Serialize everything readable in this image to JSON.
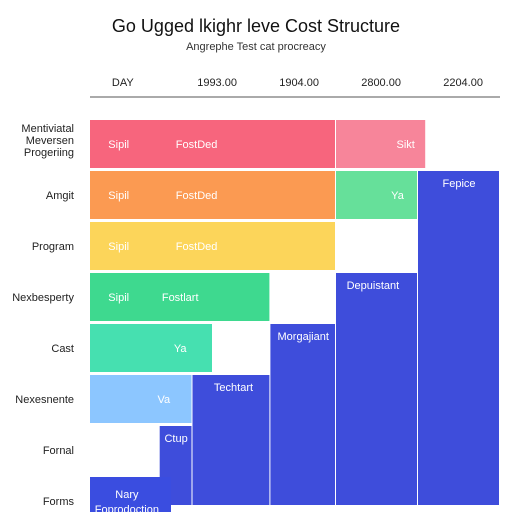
{
  "chart": {
    "title": "Go Ugged lkighr leve Cost Structure",
    "subtitle": "Angrephe Test cat procreacy"
  },
  "chart_data": {
    "type": "bar",
    "title": "Go Ugged lkighr leve Cost Structure",
    "subtitle": "Angrephe Test cat procreacy",
    "column_labels": [
      "DAY",
      "1993.00",
      "1904.00",
      "2800.00",
      "2204.00"
    ],
    "rows": [
      "Mentiviatal Meversen Progeriing",
      "Amgit",
      "Program",
      "Nexbesperty",
      "Cast",
      "Nexesnente",
      "Fornal",
      "Forms"
    ],
    "x_range": [
      0,
      5
    ],
    "bars": [
      {
        "row": 0,
        "x0": 0,
        "x1": 3,
        "color": "#f7657d",
        "labels": [
          {
            "text": "Sipil",
            "at": 0.35,
            "color": "#ffffff"
          },
          {
            "text": "FostDed",
            "at": 1.3,
            "color": "#ffffff"
          }
        ]
      },
      {
        "row": 0,
        "x0": 3,
        "x1": 4.1,
        "color": "#f7859a",
        "labels": [
          {
            "text": "Sikt",
            "at": 3.85,
            "color": "#ffffff"
          }
        ]
      },
      {
        "row": 1,
        "x0": 0,
        "x1": 3,
        "color": "#fb9a52",
        "labels": [
          {
            "text": "Sipil",
            "at": 0.35,
            "color": "#ffffff"
          },
          {
            "text": "FostDed",
            "at": 1.3,
            "color": "#ffffff"
          }
        ]
      },
      {
        "row": 1,
        "x0": 3,
        "x1": 4.0,
        "color": "#66e09a",
        "labels": [
          {
            "text": "Ya",
            "at": 3.75,
            "color": "#ffffff"
          }
        ]
      },
      {
        "row": 2,
        "x0": 0,
        "x1": 3,
        "color": "#fcd55a",
        "labels": [
          {
            "text": "Sipil",
            "at": 0.35,
            "color": "#ffffff"
          },
          {
            "text": "FostDed",
            "at": 1.3,
            "color": "#ffffff"
          }
        ]
      },
      {
        "row": 3,
        "x0": 0,
        "x1": 2.2,
        "color": "#3ed98f",
        "labels": [
          {
            "text": "Sipil",
            "at": 0.35,
            "color": "#ffffff"
          },
          {
            "text": "Fostlart",
            "at": 1.1,
            "color": "#ffffff"
          }
        ]
      },
      {
        "row": 4,
        "x0": 0,
        "x1": 1.5,
        "color": "#46e0b0",
        "labels": [
          {
            "text": "Ya",
            "at": 1.1,
            "color": "#ffffff"
          }
        ]
      },
      {
        "row": 5,
        "x0": 0,
        "x1": 1.25,
        "color": "#8cc6ff",
        "labels": [
          {
            "text": "Va",
            "at": 0.9,
            "color": "#ffffff"
          }
        ]
      },
      {
        "row": 7,
        "x0": 0,
        "x1": 1.0,
        "color": "#3a4de0",
        "labels": [
          {
            "text": "Nary",
            "at": 0.45,
            "color": "#ffffff",
            "dy": -7
          },
          {
            "text": "Foprodoction",
            "at": 0.45,
            "color": "#ffffff",
            "dy": 8
          }
        ]
      }
    ],
    "columns": [
      {
        "x0": 4.0,
        "x1": 5.0,
        "row_from": 1,
        "row_to": 7,
        "color": "#3e4ddb",
        "label": "Fepice",
        "label_row": 1,
        "label_at": 4.5
      },
      {
        "x0": 3.0,
        "x1": 4.0,
        "row_from": 3,
        "row_to": 7,
        "color": "#3e4ddb",
        "label": "Depuistant",
        "label_row": 3,
        "label_at": 3.45
      },
      {
        "x0": 2.2,
        "x1": 3.0,
        "row_from": 4,
        "row_to": 7,
        "color": "#3e4ddb",
        "label": "Morgajiant",
        "label_row": 4,
        "label_at": 2.6
      },
      {
        "x0": 1.25,
        "x1": 2.2,
        "row_from": 5,
        "row_to": 7,
        "color": "#3e4ddb",
        "label": "Techtart",
        "label_row": 5,
        "label_at": 1.75
      },
      {
        "x0": 0.85,
        "x1": 1.25,
        "row_from": 6,
        "row_to": 7,
        "color": "#3e4ddb",
        "label": "Ctup",
        "label_row": 6,
        "label_at": 1.05
      }
    ]
  }
}
